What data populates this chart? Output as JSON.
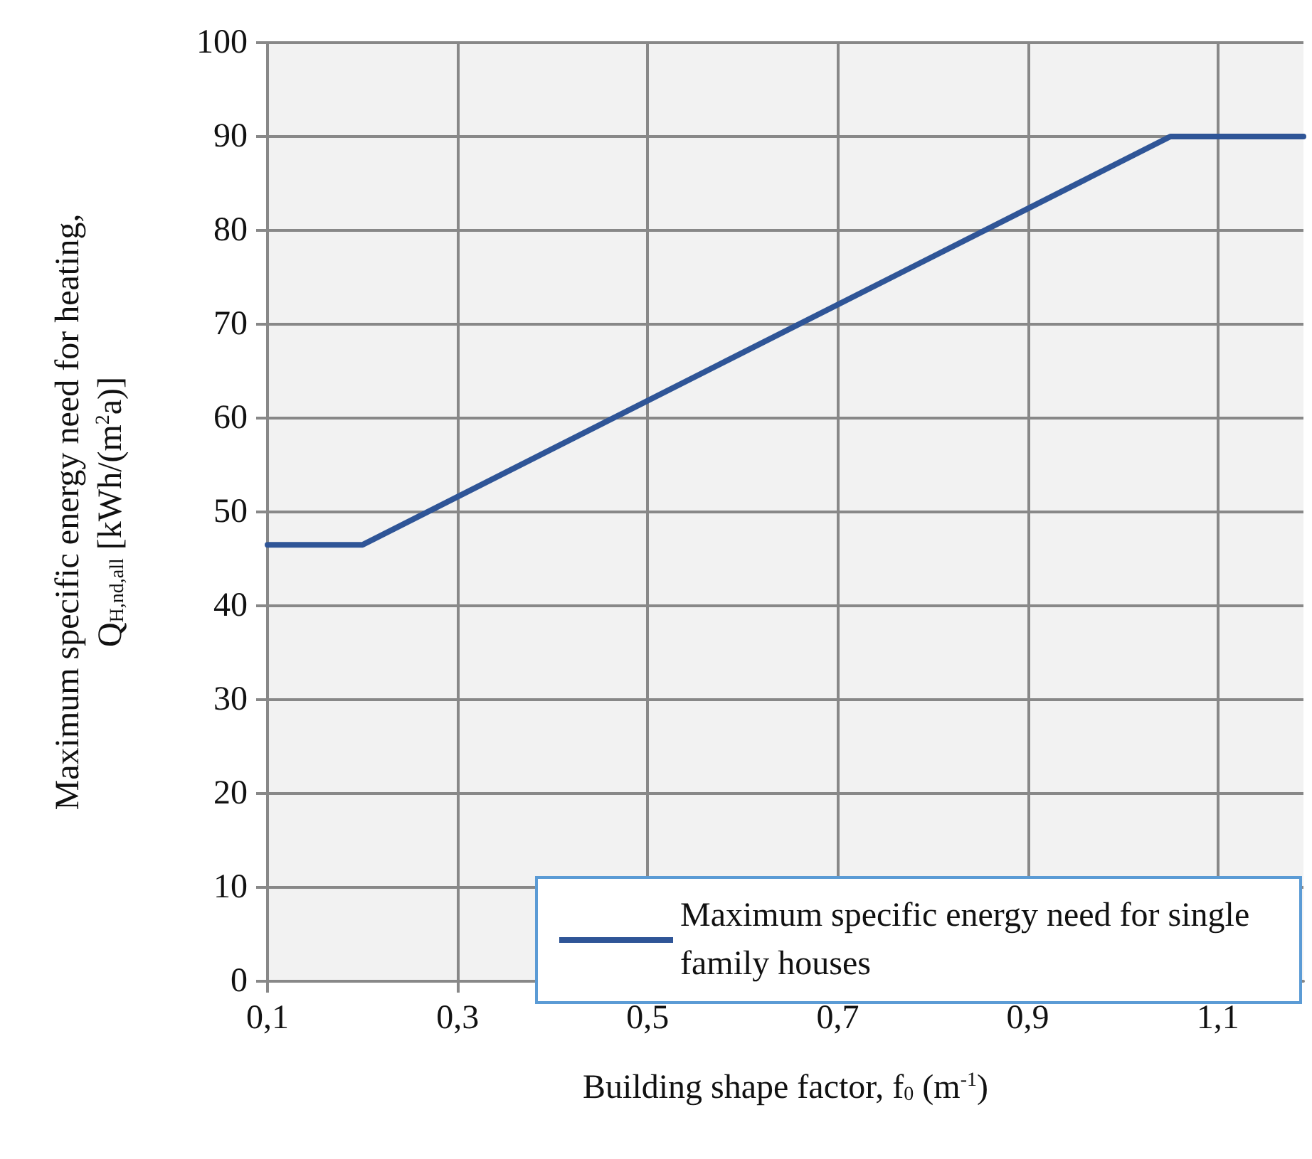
{
  "chart_data": {
    "type": "line",
    "xlabel": "Building shape factor, f$_{0}$ (m$^{-1}$)",
    "ylabel": "Maximum specific energy need for heating,\nQ$_{H,nd,all}$ [kWh/(m$^{2}$a)]",
    "x": [
      0.1,
      0.2,
      1.05,
      1.19
    ],
    "series": [
      {
        "name": "Maximum specific energy need for single family houses",
        "color": "#2f5597",
        "values": [
          46.5,
          46.5,
          90,
          90
        ]
      }
    ],
    "xlim": [
      0.1,
      1.19
    ],
    "xticks": [
      {
        "value": 0.1,
        "label": "0,1"
      },
      {
        "value": 0.3,
        "label": "0,3"
      },
      {
        "value": 0.5,
        "label": "0,5"
      },
      {
        "value": 0.7,
        "label": "0,7"
      },
      {
        "value": 0.9,
        "label": "0,9"
      },
      {
        "value": 1.1,
        "label": "1,1"
      }
    ],
    "ylim": [
      0,
      100
    ],
    "yticks": [
      0,
      10,
      20,
      30,
      40,
      50,
      60,
      70,
      80,
      90,
      100
    ],
    "grid": true,
    "legend": "bottom right",
    "marker": "none",
    "line_style": "solid"
  }
}
